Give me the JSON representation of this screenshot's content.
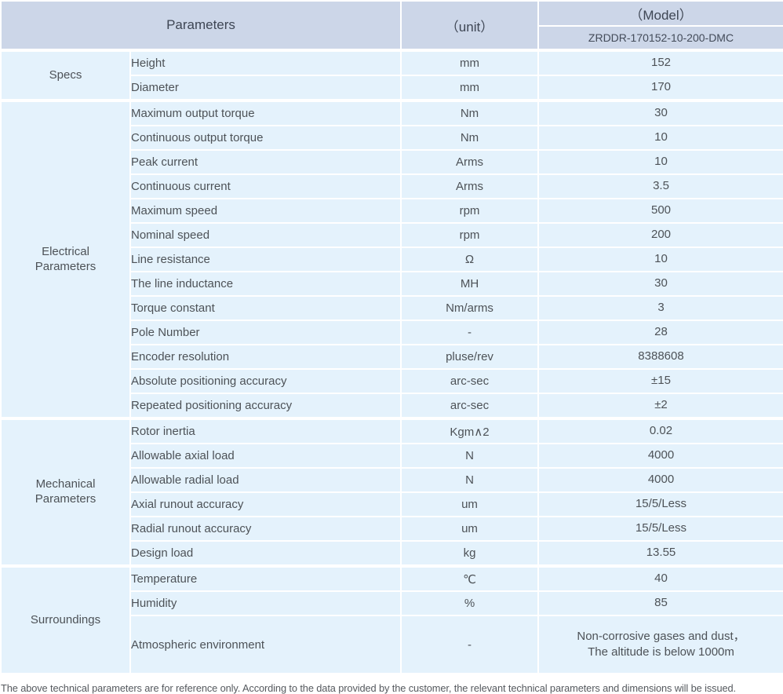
{
  "header": {
    "parameters_label": "Parameters",
    "unit_label": "（unit）",
    "model_label": "（Model）",
    "model_value": "ZRDDR-170152-10-200-DMC"
  },
  "groups": [
    {
      "label": "Specs",
      "rows": [
        {
          "param": "Height",
          "unit": "mm",
          "value": "152"
        },
        {
          "param": "Diameter",
          "unit": "mm",
          "value": "170"
        }
      ]
    },
    {
      "label": "Electrical Parameters",
      "rows": [
        {
          "param": "Maximum output torque",
          "unit": "Nm",
          "value": "30"
        },
        {
          "param": "Continuous output torque",
          "unit": "Nm",
          "value": "10"
        },
        {
          "param": "Peak current",
          "unit": "Arms",
          "value": "10"
        },
        {
          "param": "Continuous current",
          "unit": "Arms",
          "value": "3.5"
        },
        {
          "param": "Maximum speed",
          "unit": "rpm",
          "value": "500"
        },
        {
          "param": "Nominal speed",
          "unit": "rpm",
          "value": "200"
        },
        {
          "param": "Line resistance",
          "unit": "Ω",
          "value": "10"
        },
        {
          "param": "The line inductance",
          "unit": "MH",
          "value": "30"
        },
        {
          "param": "Torque constant",
          "unit": "Nm/arms",
          "value": "3"
        },
        {
          "param": "Pole Number",
          "unit": "-",
          "value": "28"
        },
        {
          "param": "Encoder resolution",
          "unit": "pluse/rev",
          "value": "8388608"
        },
        {
          "param": "Absolute positioning accuracy",
          "unit": "arc-sec",
          "value": "±15"
        },
        {
          "param": "Repeated positioning accuracy",
          "unit": "arc-sec",
          "value": "±2"
        }
      ]
    },
    {
      "label": "Mechanical Parameters",
      "rows": [
        {
          "param": "Rotor inertia",
          "unit": "Kgm∧2",
          "value": "0.02"
        },
        {
          "param": "Allowable axial load",
          "unit": "N",
          "value": "4000"
        },
        {
          "param": "Allowable radial load",
          "unit": "N",
          "value": "4000"
        },
        {
          "param": "Axial runout accuracy",
          "unit": "um",
          "value": "15/5/Less"
        },
        {
          "param": "Radial runout accuracy",
          "unit": "um",
          "value": "15/5/Less"
        },
        {
          "param": "Design load",
          "unit": "kg",
          "value": "13.55"
        }
      ]
    },
    {
      "label": "Surroundings",
      "rows": [
        {
          "param": "Temperature",
          "unit": "℃",
          "value": "40"
        },
        {
          "param": "Humidity",
          "unit": "%",
          "value": "85"
        },
        {
          "param": "Atmospheric environment",
          "unit": "-",
          "value": "Non-corrosive gases and dust，\nThe altitude is below 1000m"
        }
      ]
    }
  ],
  "footer": {
    "note": "The above technical parameters are for reference only. According to the data provided by the customer, the relevant technical parameters and dimensions will be issued."
  },
  "colors": {
    "header_bg": "#ccd6e8",
    "row_bg": "#e4f2fc",
    "separator": "#ffffff",
    "body_text": "#4d5257",
    "header_text": "#3e4654"
  }
}
